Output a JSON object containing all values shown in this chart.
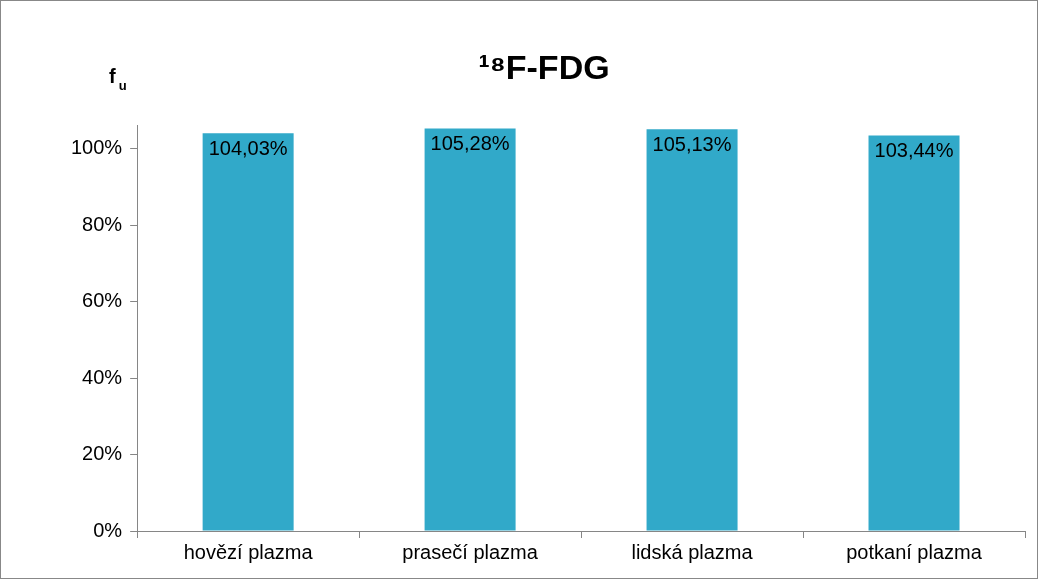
{
  "chart_data": {
    "type": "bar",
    "title": "¹⁸F-FDG",
    "ylabel": "f$_{u}$",
    "categories": [
      "hovězí plazma",
      "prasečí plazma",
      "lidská plazma",
      "potkaní plazma"
    ],
    "values": [
      104.03,
      105.28,
      105.13,
      103.44
    ],
    "value_labels": [
      "104,03%",
      "105,28%",
      "105,13%",
      "103,44%"
    ],
    "color": "#31a9c9",
    "ylim": [
      0,
      106
    ],
    "yticks": [
      {
        "value": 0,
        "label": "0%"
      },
      {
        "value": 20,
        "label": "20%"
      },
      {
        "value": 40,
        "label": "40%"
      },
      {
        "value": 60,
        "label": "60%"
      },
      {
        "value": 80,
        "label": "80%"
      },
      {
        "value": 100,
        "label": "100%"
      }
    ],
    "grid": false,
    "legend": false
  }
}
